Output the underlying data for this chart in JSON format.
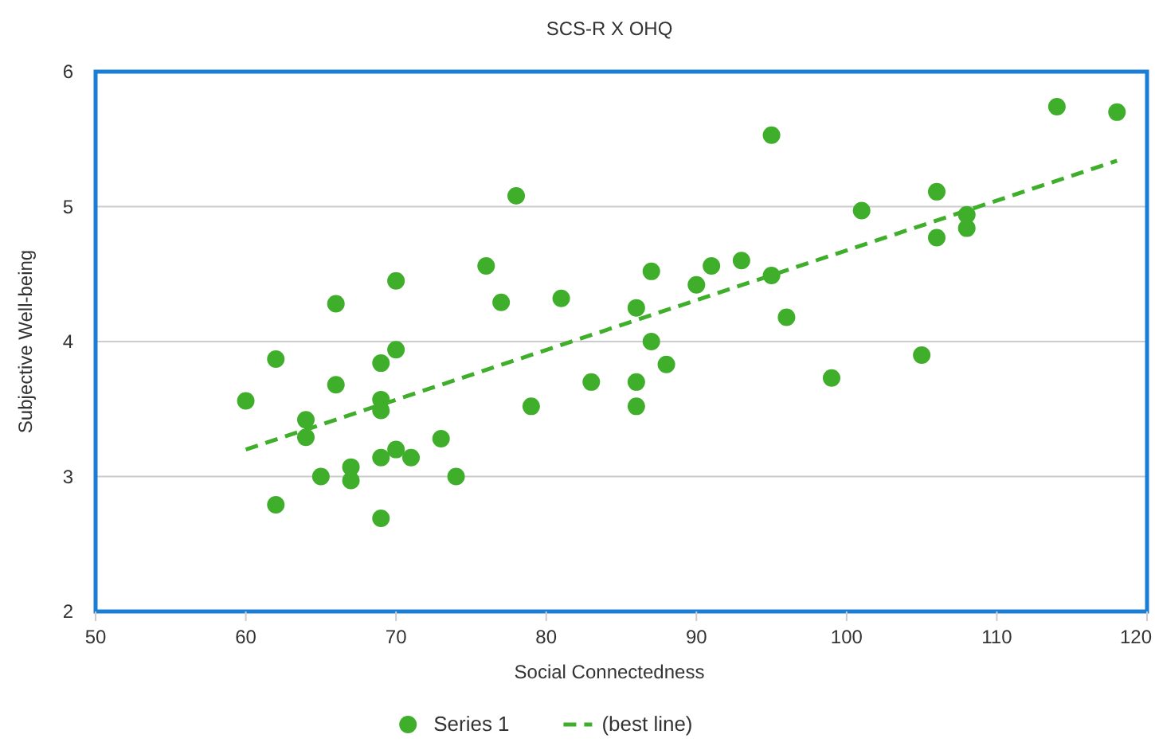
{
  "chart_data": {
    "type": "scatter",
    "title": "SCS-R X OHQ",
    "xlabel": "Social Connectedness",
    "ylabel": "Subjective Well-being",
    "xlim": [
      50,
      120
    ],
    "xticks": [
      50,
      60,
      70,
      80,
      90,
      100,
      110,
      120
    ],
    "ylim": [
      2,
      6
    ],
    "yticks": [
      2,
      3,
      4,
      5,
      6
    ],
    "grid": "y",
    "legend": "bottom",
    "series": [
      {
        "name": "Series 1",
        "marker": "circle",
        "color": "#3fae2a",
        "x": [
          60,
          62,
          62,
          64,
          64,
          65,
          66,
          66,
          67,
          67,
          69,
          69,
          69,
          69,
          69,
          70,
          70,
          70,
          71,
          73,
          74,
          76,
          77,
          78,
          79,
          81,
          83,
          86,
          86,
          86,
          87,
          87,
          88,
          90,
          91,
          93,
          95,
          95,
          96,
          99,
          101,
          105,
          106,
          106,
          108,
          108,
          114,
          118
        ],
        "values": [
          3.56,
          3.87,
          2.79,
          3.42,
          3.29,
          3.0,
          4.28,
          3.68,
          3.07,
          2.97,
          3.84,
          3.57,
          3.49,
          3.14,
          2.69,
          4.45,
          3.94,
          3.2,
          3.14,
          3.28,
          3.0,
          4.56,
          4.29,
          5.08,
          3.52,
          4.32,
          3.7,
          4.25,
          3.7,
          3.52,
          4.52,
          4.0,
          3.83,
          4.42,
          4.56,
          4.6,
          5.53,
          4.49,
          4.18,
          3.73,
          4.97,
          3.9,
          5.11,
          4.77,
          4.94,
          4.84,
          5.74,
          5.7
        ]
      },
      {
        "name": "(best line)",
        "type": "line",
        "line_style": "dashed",
        "color": "#3fae2a",
        "x": [
          60,
          118
        ],
        "values": [
          3.2,
          5.34
        ]
      }
    ]
  }
}
